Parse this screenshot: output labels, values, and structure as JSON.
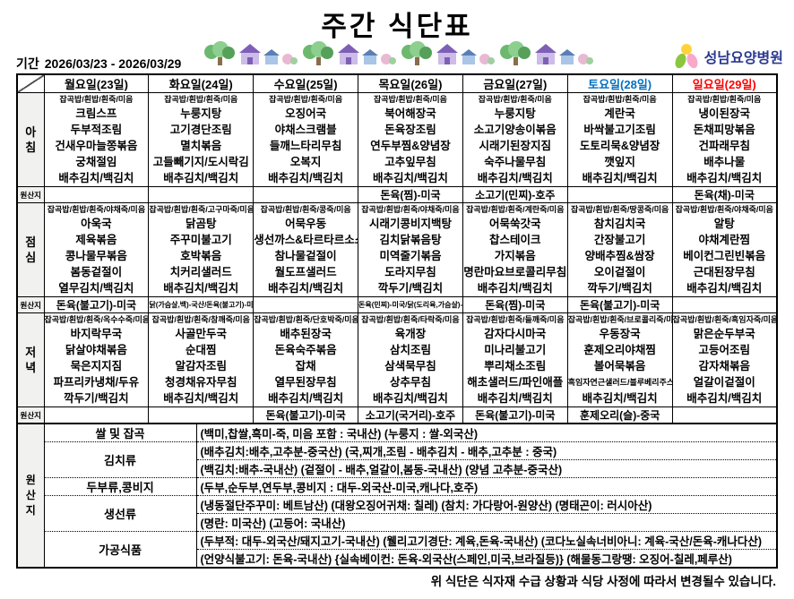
{
  "header": {
    "title": "주간 식단표",
    "period_label": "기간",
    "period_value": "2026/03/23 - 2026/03/29",
    "hospital_name": "성남요양병원"
  },
  "icons": {
    "village": "village-clipart",
    "logo": "hospital-logo"
  },
  "colors": {
    "saturday": "#0070c0",
    "sunday": "#ff0000",
    "logo_navy": "#2b3990",
    "logo_green": "#8cc63f",
    "logo_pink": "#f9a8cb",
    "logo_yellow": "#ffd23b"
  },
  "table": {
    "day_headers": [
      {
        "label": "월요일(23일)",
        "color": "#000000"
      },
      {
        "label": "화요일(24일)",
        "color": "#000000"
      },
      {
        "label": "수요일(25일)",
        "color": "#000000"
      },
      {
        "label": "목요일(26일)",
        "color": "#000000"
      },
      {
        "label": "금요일(27일)",
        "color": "#000000"
      },
      {
        "label": "토요일(28일)",
        "color": "#0070c0"
      },
      {
        "label": "일요일(29일)",
        "color": "#ff0000"
      }
    ],
    "origin_row_label": "원산지",
    "meals": [
      {
        "label": "아침",
        "columns": [
          {
            "rice": "잡곡밥/흰밥/흰죽/미음",
            "items": [
              "크림스프",
              "두부적조림",
              "건새우마늘쫑볶음",
              "궁채절임",
              "배추김치/백김치"
            ]
          },
          {
            "rice": "잡곡밥/흰밥/흰죽/미음",
            "items": [
              "누룽지탕",
              "고기경단조림",
              "멸치볶음",
              "고들빼기지/도시락김",
              "배추김치/백김치"
            ]
          },
          {
            "rice": "잡곡밥/흰밥/흰죽/미음",
            "items": [
              "오징어국",
              "야채스크램블",
              "들깨느타리무침",
              "오복지",
              "배추김치/백김치"
            ]
          },
          {
            "rice": "잡곡밥/흰밥/흰죽/미음",
            "items": [
              "북어해장국",
              "돈육장조림",
              "연두부찜&양념장",
              "고추잎무침",
              "배추김치/백김치"
            ]
          },
          {
            "rice": "잡곡밥/흰밥/흰죽/미음",
            "items": [
              "누룽지탕",
              "소고기양송이볶음",
              "시래기된장지짐",
              "숙주나물무침",
              "배추김치/백김치"
            ]
          },
          {
            "rice": "잡곡밥/흰밥/흰죽/미음",
            "items": [
              "계란국",
              "바싹불고기조림",
              "도토리묵&양념장",
              "깻잎지",
              "배추김치/백김치"
            ]
          },
          {
            "rice": "잡곡밥/흰밥/흰죽/미음",
            "items": [
              "냉이된장국",
              "돈채피망볶음",
              "건파래무침",
              "배추나물",
              "배추김치/백김치"
            ]
          }
        ],
        "origin": [
          "",
          "",
          "",
          "돈육(찜)-미국",
          "소고기(민찌)-호주",
          "",
          "돈육(채)-미국"
        ]
      },
      {
        "label": "점심",
        "columns": [
          {
            "rice": "잡곡밥/흰밥/흰죽/야채죽/미음",
            "items": [
              "아욱국",
              "제육볶음",
              "콩나물무볶음",
              "봄동겉절이",
              "열무김치/백김치"
            ]
          },
          {
            "rice": "잡곡밥/흰밥/흰죽/고구마죽/미음",
            "items": [
              "닭곰탕",
              "주꾸미불고기",
              "호박볶음",
              "치커리샐러드",
              "배추김치/백김치"
            ]
          },
          {
            "rice": "잡곡밥/흰밥/흰죽/콩죽/미음",
            "items": [
              "어묵우동",
              "생선까스&타르타르소스",
              "참나물겉절이",
              "월도프샐러드",
              "배추김치/백김치"
            ]
          },
          {
            "rice": "잡곡밥/흰밥/흰죽/야채죽/미음",
            "items": [
              "시래기콩비지백탕",
              "김치닭볶음탕",
              "미역줄기볶음",
              "도라지무침",
              "깍두기/백김치"
            ]
          },
          {
            "rice": "잡곡밥/흰밥/흰죽/계란죽/미음",
            "items": [
              "어묵쑥갓국",
              "찹스테이크",
              "가지볶음",
              "명란마요브로콜리무침",
              "배추김치/백김치"
            ]
          },
          {
            "rice": "잡곡밥/흰밥/흰죽/땅콩죽/미음",
            "items": [
              "참치김치국",
              "간장불고기",
              "양배추찜&쌈장",
              "오이겉절이",
              "깍두기/백김치"
            ]
          },
          {
            "rice": "잡곡밥/흰밥/흰죽/야채죽/미음",
            "items": [
              "알탕",
              "야채계란찜",
              "베이컨그린빈볶음",
              "근대된장무침",
              "배추김치/백김치"
            ]
          }
        ],
        "origin": [
          "돈육(불고기)-미국",
          "닭(가슴살,백)-국산/돈육(불고기)-미국",
          "",
          "돈육(민찌)-미국/닭(도리육,가슴살)-국산",
          "돈육(찜)-미국",
          "돈육(불고기)-미국",
          ""
        ]
      },
      {
        "label": "저녁",
        "columns": [
          {
            "rice": "잡곡밥/흰밥/흰죽/옥수수죽/미음",
            "items": [
              "바지락무국",
              "닭살야채볶음",
              "묵은지지짐",
              "파프리카냉채/두유",
              "깍두기/백김치"
            ]
          },
          {
            "rice": "잡곡밥/흰밥/흰죽/참깨죽/미음",
            "items": [
              "사골만두국",
              "순대찜",
              "알감자조림",
              "청경채유자무침",
              "배추김치/백김치"
            ]
          },
          {
            "rice": "잡곡밥/흰밥/흰죽/단호박죽/미음",
            "items": [
              "배추된장국",
              "돈육숙주볶음",
              "잡채",
              "열무된장무침",
              "배추김치/백김치"
            ]
          },
          {
            "rice": "잡곡밥/흰밥/흰죽/타락죽/미음",
            "items": [
              "육개장",
              "삼치조림",
              "삼색묵무침",
              "상추무침",
              "배추김치/백김치"
            ]
          },
          {
            "rice": "잡곡밥/흰밥/흰죽/들깨죽/미음",
            "items": [
              "감자다시마국",
              "미나리불고기",
              "뿌리채소조림",
              "해초샐러드/파인애플",
              "배추김치/백김치"
            ]
          },
          {
            "rice": "잡곡밥/흰밥/흰죽/브로콜리죽/미음",
            "items": [
              "우동장국",
              "훈제오리야채찜",
              "볼어묵볶음",
              "흑임자연근샐러드/블루베리주스",
              "배추김치/백김치"
            ]
          },
          {
            "rice": "잡곡밥/흰밥/흰죽/흑임자죽/미음",
            "items": [
              "맑은순두부국",
              "고등어조림",
              "감자채볶음",
              "얼갈이겉절이",
              "배추김치/백김치"
            ]
          }
        ],
        "origin": [
          "",
          "",
          "돈육(불고기)-미국",
          "소고기(국거리)-호주",
          "돈육(불고기)-미국",
          "훈제오리(슬)-중국",
          ""
        ]
      }
    ]
  },
  "origin_section": {
    "label": "원산지",
    "rows": [
      {
        "category": "쌀 및 잡곡",
        "lines": [
          "(백미,찹쌀,흑미-죽, 미음 포함 : 국내산) (누룽지 : 쌀-외국산)"
        ]
      },
      {
        "category": "김치류",
        "lines": [
          "(배추김치:배추,고추분-중국산) (국,찌개,조림 - 배추김치 - 배추,고추분 : 중국)",
          "(백김치:배추-국내산) (겉절이 - 배추,얼갈이,봄동-국내산) (양념 고추분-중국산)"
        ]
      },
      {
        "category": "두부류,콩비지",
        "lines": [
          "(두부,순두부,연두부,콩비지 : 대두-외국산-미국,캐나다,호주)"
        ]
      },
      {
        "category": "생선류",
        "lines": [
          "(냉동절단주꾸미: 베트남산) (대왕오징어귀채: 칠레) (참치: 가다랑어-원양산) (명태곤이: 러시아산)",
          "(명란: 미국산) (고등어: 국내산)"
        ]
      },
      {
        "category": "가공식품",
        "lines": [
          "(두부적: 대두-외국산/돼지고기-국내산) (웰리고기경단: 계육,돈육-국내산) (코다노실속너비아니: 계육-국산/돈육-캐나다산)",
          "(언양식불고기: 돈육-국내산) {실속베이컨: 돈육-외국산(스페인,미국,브라질등)} (해물동그랑땡: 오징어-칠레,페루산)"
        ]
      }
    ]
  },
  "footer_note": "위 식단은 식자재 수급 상황과 식당 사정에 따라서  변경될수 있습니다."
}
